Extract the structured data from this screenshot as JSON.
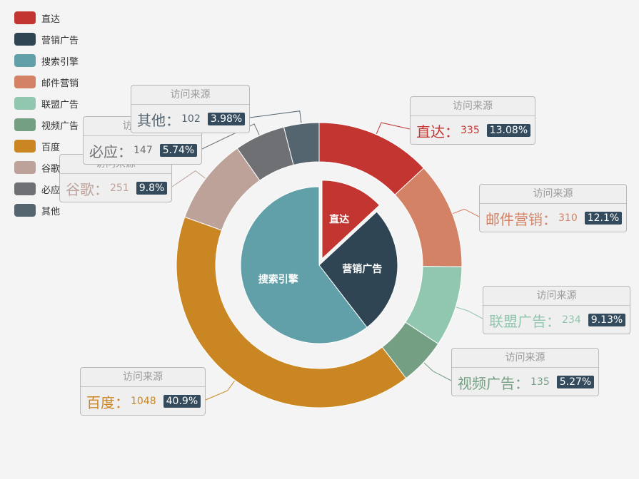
{
  "chart_data": {
    "type": "pie",
    "legend_position": "top-left, vertical",
    "label_header": "访问来源",
    "inner": {
      "series": [
        {
          "name": "直达",
          "value": 335,
          "color": "#c23531"
        },
        {
          "name": "营销广告",
          "value": 679,
          "color": "#2f4554"
        },
        {
          "name": "搜索引擎",
          "value": 1548,
          "color": "#61a0a8"
        }
      ],
      "selected": "直达"
    },
    "outer": {
      "series": [
        {
          "name": "直达",
          "value": 335,
          "percent": "13.08%",
          "color": "#c23531"
        },
        {
          "name": "邮件营销",
          "value": 310,
          "percent": "12.1%",
          "color": "#d48265"
        },
        {
          "name": "联盟广告",
          "value": 234,
          "percent": "9.13%",
          "color": "#91c7ae"
        },
        {
          "name": "视频广告",
          "value": 135,
          "percent": "5.27%",
          "color": "#749f83"
        },
        {
          "name": "百度",
          "value": 1048,
          "percent": "40.9%",
          "color": "#ca8622"
        },
        {
          "name": "谷歌",
          "value": 251,
          "percent": "9.8%",
          "color": "#bda29a"
        },
        {
          "name": "必应",
          "value": 147,
          "percent": "5.74%",
          "color": "#6e7074"
        },
        {
          "name": "其他",
          "value": 102,
          "percent": "3.98%",
          "color": "#546570"
        }
      ]
    },
    "legend": [
      {
        "name": "直达",
        "color": "#c23531"
      },
      {
        "name": "营销广告",
        "color": "#2f4554"
      },
      {
        "name": "搜索引擎",
        "color": "#61a0a8"
      },
      {
        "name": "邮件营销",
        "color": "#d48265"
      },
      {
        "name": "联盟广告",
        "color": "#91c7ae"
      },
      {
        "name": "视频广告",
        "color": "#749f83"
      },
      {
        "name": "百度",
        "color": "#ca8622"
      },
      {
        "name": "谷歌",
        "color": "#bda29a"
      },
      {
        "name": "必应",
        "color": "#6e7074"
      },
      {
        "name": "其他",
        "color": "#546570"
      }
    ]
  }
}
